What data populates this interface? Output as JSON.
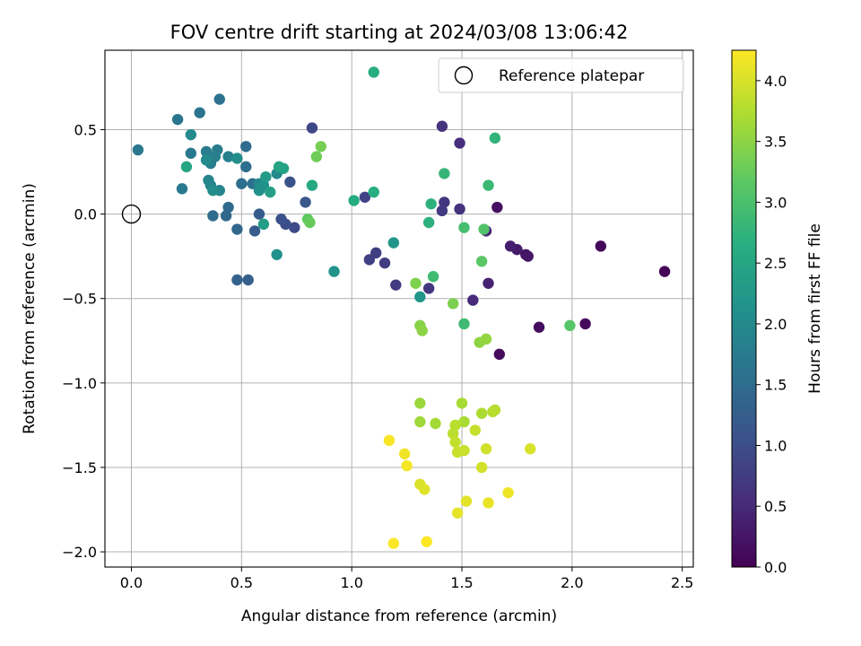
{
  "chart_data": {
    "type": "scatter",
    "title": "FOV centre drift starting at 2024/03/08 13:06:42",
    "xlabel": "Angular distance from reference (arcmin)",
    "ylabel": "Rotation from reference (arcmin)",
    "xlim": [
      -0.12,
      2.55
    ],
    "ylim": [
      -2.09,
      0.97
    ],
    "xticks": [
      0.0,
      0.5,
      1.0,
      1.5,
      2.0,
      2.5
    ],
    "xtick_labels": [
      "0.0",
      "0.5",
      "1.0",
      "1.5",
      "2.0",
      "2.5"
    ],
    "yticks": [
      -2.0,
      -1.5,
      -1.0,
      -0.5,
      0.0,
      0.5
    ],
    "ytick_labels": [
      "−2.0",
      "−1.5",
      "−1.0",
      "−0.5",
      "0.0",
      "0.5"
    ],
    "grid": true,
    "colormap": "viridis",
    "colorbar": {
      "label": "Hours from first FF file",
      "min": 0.0,
      "max": 4.25,
      "ticks": [
        0.0,
        0.5,
        1.0,
        1.5,
        2.0,
        2.5,
        3.0,
        3.5,
        4.0
      ],
      "tick_labels": [
        "0.0",
        "0.5",
        "1.0",
        "1.5",
        "2.0",
        "2.5",
        "3.0",
        "3.5",
        "4.0"
      ]
    },
    "legend": {
      "placement": "top-right",
      "label": "Reference platepar"
    },
    "reference_point": {
      "x": 0.0,
      "y": 0.0
    },
    "points": [
      {
        "x": 2.42,
        "y": -0.34,
        "c": 0.05
      },
      {
        "x": 2.13,
        "y": -0.19,
        "c": 0.08
      },
      {
        "x": 2.06,
        "y": -0.65,
        "c": 0.1
      },
      {
        "x": 1.85,
        "y": -0.67,
        "c": 0.15
      },
      {
        "x": 1.79,
        "y": -0.24,
        "c": 0.22
      },
      {
        "x": 1.8,
        "y": -0.25,
        "c": 0.25
      },
      {
        "x": 1.75,
        "y": -0.21,
        "c": 0.3
      },
      {
        "x": 1.72,
        "y": -0.19,
        "c": 0.35
      },
      {
        "x": 1.67,
        "y": -0.83,
        "c": 0.12
      },
      {
        "x": 1.66,
        "y": 0.04,
        "c": 0.18
      },
      {
        "x": 1.62,
        "y": -0.41,
        "c": 0.4
      },
      {
        "x": 1.61,
        "y": -0.1,
        "c": 0.45
      },
      {
        "x": 1.55,
        "y": -0.51,
        "c": 0.5
      },
      {
        "x": 1.49,
        "y": 0.42,
        "c": 0.55
      },
      {
        "x": 1.49,
        "y": 0.03,
        "c": 0.6
      },
      {
        "x": 1.41,
        "y": 0.52,
        "c": 0.62
      },
      {
        "x": 1.42,
        "y": 0.07,
        "c": 0.65
      },
      {
        "x": 1.41,
        "y": 0.02,
        "c": 0.7
      },
      {
        "x": 1.35,
        "y": -0.44,
        "c": 0.68
      },
      {
        "x": 1.2,
        "y": -0.42,
        "c": 0.72
      },
      {
        "x": 1.15,
        "y": -0.29,
        "c": 0.75
      },
      {
        "x": 1.11,
        "y": -0.23,
        "c": 0.78
      },
      {
        "x": 1.08,
        "y": -0.27,
        "c": 0.8
      },
      {
        "x": 1.06,
        "y": 0.1,
        "c": 0.85
      },
      {
        "x": 0.82,
        "y": 0.51,
        "c": 0.9
      },
      {
        "x": 0.74,
        "y": -0.08,
        "c": 0.95
      },
      {
        "x": 0.7,
        "y": -0.06,
        "c": 1.0
      },
      {
        "x": 0.68,
        "y": -0.03,
        "c": 1.05
      },
      {
        "x": 0.72,
        "y": 0.19,
        "c": 1.1
      },
      {
        "x": 0.79,
        "y": 0.07,
        "c": 1.15
      },
      {
        "x": 0.58,
        "y": 0.0,
        "c": 1.2
      },
      {
        "x": 0.56,
        "y": -0.1,
        "c": 1.25
      },
      {
        "x": 0.53,
        "y": -0.39,
        "c": 1.3
      },
      {
        "x": 0.48,
        "y": -0.39,
        "c": 1.35
      },
      {
        "x": 0.48,
        "y": -0.09,
        "c": 1.4
      },
      {
        "x": 0.44,
        "y": 0.04,
        "c": 1.42
      },
      {
        "x": 0.43,
        "y": -0.01,
        "c": 1.45
      },
      {
        "x": 0.37,
        "y": -0.01,
        "c": 1.48
      },
      {
        "x": 0.52,
        "y": 0.4,
        "c": 1.5
      },
      {
        "x": 0.52,
        "y": 0.28,
        "c": 1.52
      },
      {
        "x": 0.5,
        "y": 0.18,
        "c": 1.55
      },
      {
        "x": 0.55,
        "y": 0.18,
        "c": 1.58
      },
      {
        "x": 0.4,
        "y": 0.68,
        "c": 1.6
      },
      {
        "x": 0.31,
        "y": 0.6,
        "c": 1.62
      },
      {
        "x": 0.21,
        "y": 0.56,
        "c": 1.65
      },
      {
        "x": 0.03,
        "y": 0.38,
        "c": 1.68
      },
      {
        "x": 0.23,
        "y": 0.15,
        "c": 1.7
      },
      {
        "x": 0.27,
        "y": 0.36,
        "c": 1.72
      },
      {
        "x": 0.34,
        "y": 0.37,
        "c": 1.75
      },
      {
        "x": 0.39,
        "y": 0.38,
        "c": 1.78
      },
      {
        "x": 0.36,
        "y": 0.3,
        "c": 1.8
      },
      {
        "x": 0.38,
        "y": 0.34,
        "c": 1.82
      },
      {
        "x": 0.44,
        "y": 0.34,
        "c": 1.85
      },
      {
        "x": 0.36,
        "y": 0.17,
        "c": 1.88
      },
      {
        "x": 0.35,
        "y": 0.2,
        "c": 1.9
      },
      {
        "x": 0.4,
        "y": 0.14,
        "c": 1.92
      },
      {
        "x": 0.58,
        "y": 0.18,
        "c": 1.95
      },
      {
        "x": 0.66,
        "y": 0.24,
        "c": 1.98
      },
      {
        "x": 0.27,
        "y": 0.47,
        "c": 2.0
      },
      {
        "x": 0.34,
        "y": 0.32,
        "c": 2.02
      },
      {
        "x": 0.37,
        "y": 0.14,
        "c": 2.05
      },
      {
        "x": 0.48,
        "y": 0.33,
        "c": 2.08
      },
      {
        "x": 0.58,
        "y": 0.14,
        "c": 2.1
      },
      {
        "x": 0.6,
        "y": 0.17,
        "c": 2.12
      },
      {
        "x": 0.66,
        "y": -0.24,
        "c": 2.15
      },
      {
        "x": 0.92,
        "y": -0.34,
        "c": 2.18
      },
      {
        "x": 1.19,
        "y": -0.17,
        "c": 2.2
      },
      {
        "x": 1.31,
        "y": -0.49,
        "c": 2.22
      },
      {
        "x": 0.61,
        "y": 0.22,
        "c": 2.3
      },
      {
        "x": 0.6,
        "y": -0.06,
        "c": 2.35
      },
      {
        "x": 0.63,
        "y": 0.13,
        "c": 2.4
      },
      {
        "x": 0.69,
        "y": 0.27,
        "c": 2.42
      },
      {
        "x": 0.67,
        "y": 0.28,
        "c": 2.45
      },
      {
        "x": 0.25,
        "y": 0.28,
        "c": 2.5
      },
      {
        "x": 0.82,
        "y": 0.17,
        "c": 2.55
      },
      {
        "x": 1.01,
        "y": 0.08,
        "c": 2.6
      },
      {
        "x": 1.1,
        "y": 0.84,
        "c": 2.62
      },
      {
        "x": 1.1,
        "y": 0.13,
        "c": 2.65
      },
      {
        "x": 1.35,
        "y": -0.05,
        "c": 2.7
      },
      {
        "x": 1.36,
        "y": 0.06,
        "c": 2.72
      },
      {
        "x": 1.65,
        "y": 0.45,
        "c": 2.75
      },
      {
        "x": 1.42,
        "y": 0.24,
        "c": 2.8
      },
      {
        "x": 1.62,
        "y": 0.17,
        "c": 2.85
      },
      {
        "x": 1.51,
        "y": -0.65,
        "c": 2.88
      },
      {
        "x": 1.37,
        "y": -0.37,
        "c": 2.9
      },
      {
        "x": 1.51,
        "y": -0.08,
        "c": 2.95
      },
      {
        "x": 1.6,
        "y": -0.09,
        "c": 3.05
      },
      {
        "x": 1.99,
        "y": -0.66,
        "c": 3.1
      },
      {
        "x": 1.59,
        "y": -0.28,
        "c": 3.15
      },
      {
        "x": 0.8,
        "y": -0.03,
        "c": 3.2
      },
      {
        "x": 0.81,
        "y": -0.05,
        "c": 3.25
      },
      {
        "x": 0.84,
        "y": 0.34,
        "c": 3.3
      },
      {
        "x": 0.86,
        "y": 0.4,
        "c": 3.35
      },
      {
        "x": 1.46,
        "y": -0.53,
        "c": 3.38
      },
      {
        "x": 1.29,
        "y": -0.41,
        "c": 3.4
      },
      {
        "x": 1.31,
        "y": -0.66,
        "c": 3.45
      },
      {
        "x": 1.32,
        "y": -0.69,
        "c": 3.5
      },
      {
        "x": 1.58,
        "y": -0.76,
        "c": 3.52
      },
      {
        "x": 1.61,
        "y": -0.74,
        "c": 3.55
      },
      {
        "x": 1.31,
        "y": -1.12,
        "c": 3.6
      },
      {
        "x": 1.31,
        "y": -1.23,
        "c": 3.62
      },
      {
        "x": 1.38,
        "y": -1.24,
        "c": 3.65
      },
      {
        "x": 1.5,
        "y": -1.12,
        "c": 3.68
      },
      {
        "x": 1.51,
        "y": -1.23,
        "c": 3.7
      },
      {
        "x": 1.59,
        "y": -1.18,
        "c": 3.72
      },
      {
        "x": 1.64,
        "y": -1.17,
        "c": 3.75
      },
      {
        "x": 1.65,
        "y": -1.16,
        "c": 3.78
      },
      {
        "x": 1.47,
        "y": -1.25,
        "c": 3.8
      },
      {
        "x": 1.46,
        "y": -1.3,
        "c": 3.82
      },
      {
        "x": 1.47,
        "y": -1.35,
        "c": 3.85
      },
      {
        "x": 1.56,
        "y": -1.28,
        "c": 3.88
      },
      {
        "x": 1.48,
        "y": -1.41,
        "c": 3.9
      },
      {
        "x": 1.51,
        "y": -1.4,
        "c": 3.92
      },
      {
        "x": 1.61,
        "y": -1.39,
        "c": 3.95
      },
      {
        "x": 1.59,
        "y": -1.5,
        "c": 3.97
      },
      {
        "x": 1.81,
        "y": -1.39,
        "c": 4.0
      },
      {
        "x": 1.31,
        "y": -1.6,
        "c": 4.02
      },
      {
        "x": 1.33,
        "y": -1.63,
        "c": 4.05
      },
      {
        "x": 1.52,
        "y": -1.7,
        "c": 4.08
      },
      {
        "x": 1.48,
        "y": -1.77,
        "c": 4.1
      },
      {
        "x": 1.62,
        "y": -1.71,
        "c": 4.12
      },
      {
        "x": 1.71,
        "y": -1.65,
        "c": 4.15
      },
      {
        "x": 1.24,
        "y": -1.42,
        "c": 4.17
      },
      {
        "x": 1.25,
        "y": -1.49,
        "c": 4.2
      },
      {
        "x": 1.17,
        "y": -1.34,
        "c": 4.22
      },
      {
        "x": 1.19,
        "y": -1.95,
        "c": 4.24
      },
      {
        "x": 1.34,
        "y": -1.94,
        "c": 4.25
      }
    ]
  }
}
